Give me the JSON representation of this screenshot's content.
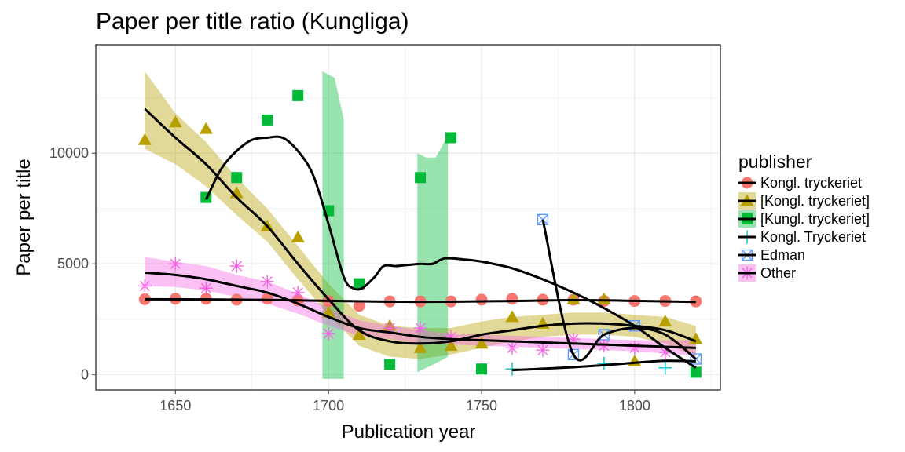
{
  "chart_data": {
    "type": "scatter",
    "title": "Paper per title ratio (Kungliga)",
    "xlabel": "Publication year",
    "ylabel": "Paper per title",
    "xlim": [
      1624,
      1828
    ],
    "ylim": [
      -700,
      14900
    ],
    "x_ticks": [
      1650,
      1700,
      1750,
      1800
    ],
    "y_ticks": [
      0,
      5000,
      10000
    ],
    "grid": true,
    "legend": {
      "title": "publisher",
      "placement": "right"
    },
    "series": [
      {
        "name": "Kongl. tryckeriet",
        "color": "#F8766D",
        "shape": "circle",
        "points": [
          [
            1640,
            3400
          ],
          [
            1650,
            3420
          ],
          [
            1660,
            3420
          ],
          [
            1670,
            3380
          ],
          [
            1680,
            3420
          ],
          [
            1690,
            3350
          ],
          [
            1700,
            3300
          ],
          [
            1710,
            3100
          ],
          [
            1720,
            3300
          ],
          [
            1730,
            3300
          ],
          [
            1740,
            3300
          ],
          [
            1750,
            3380
          ],
          [
            1760,
            3420
          ],
          [
            1770,
            3380
          ],
          [
            1780,
            3380
          ],
          [
            1790,
            3320
          ],
          [
            1800,
            3320
          ],
          [
            1810,
            3320
          ],
          [
            1820,
            3300
          ]
        ],
        "smooth": [
          [
            1640,
            3400
          ],
          [
            1660,
            3390
          ],
          [
            1680,
            3370
          ],
          [
            1700,
            3330
          ],
          [
            1720,
            3290
          ],
          [
            1740,
            3290
          ],
          [
            1760,
            3320
          ],
          [
            1780,
            3360
          ],
          [
            1800,
            3330
          ],
          [
            1820,
            3280
          ]
        ],
        "band": null
      },
      {
        "name": "[Kongl. tryckeriet]",
        "color": "#B79F00",
        "shape": "triangle",
        "points": [
          [
            1640,
            10600
          ],
          [
            1650,
            11400
          ],
          [
            1660,
            11100
          ],
          [
            1670,
            8200
          ],
          [
            1680,
            6700
          ],
          [
            1690,
            6200
          ],
          [
            1700,
            2800
          ],
          [
            1710,
            1800
          ],
          [
            1720,
            2200
          ],
          [
            1730,
            1200
          ],
          [
            1740,
            1300
          ],
          [
            1750,
            1400
          ],
          [
            1760,
            2600
          ],
          [
            1770,
            2300
          ],
          [
            1780,
            3400
          ],
          [
            1790,
            3400
          ],
          [
            1800,
            600
          ],
          [
            1810,
            2400
          ],
          [
            1820,
            1600
          ]
        ],
        "smooth": [
          [
            1640,
            12000
          ],
          [
            1650,
            10700
          ],
          [
            1660,
            9500
          ],
          [
            1670,
            8000
          ],
          [
            1680,
            6700
          ],
          [
            1690,
            5000
          ],
          [
            1700,
            3400
          ],
          [
            1710,
            2000
          ],
          [
            1720,
            1500
          ],
          [
            1730,
            1400
          ],
          [
            1740,
            1500
          ],
          [
            1750,
            1800
          ],
          [
            1760,
            2000
          ],
          [
            1770,
            2200
          ],
          [
            1780,
            2300
          ],
          [
            1790,
            2300
          ],
          [
            1800,
            2200
          ],
          [
            1810,
            2000
          ],
          [
            1820,
            1500
          ]
        ],
        "band": [
          [
            1640,
            10200,
            13700
          ],
          [
            1650,
            9500,
            11800
          ],
          [
            1660,
            8500,
            10500
          ],
          [
            1670,
            7200,
            8900
          ],
          [
            1680,
            6000,
            7500
          ],
          [
            1690,
            4300,
            5800
          ],
          [
            1700,
            2700,
            4100
          ],
          [
            1710,
            1300,
            2700
          ],
          [
            1720,
            800,
            2200
          ],
          [
            1730,
            700,
            2100
          ],
          [
            1740,
            900,
            2100
          ],
          [
            1750,
            1200,
            2400
          ],
          [
            1760,
            1500,
            2600
          ],
          [
            1770,
            1700,
            2700
          ],
          [
            1780,
            1800,
            2800
          ],
          [
            1790,
            1800,
            2800
          ],
          [
            1800,
            1700,
            2700
          ],
          [
            1810,
            1400,
            2600
          ],
          [
            1820,
            800,
            2200
          ]
        ]
      },
      {
        "name": "[Kungl. tryckeriet]",
        "color": "#00BA38",
        "shape": "square",
        "points": [
          [
            1660,
            8000
          ],
          [
            1670,
            8900
          ],
          [
            1680,
            11500
          ],
          [
            1690,
            12600
          ],
          [
            1700,
            7400
          ],
          [
            1710,
            4100
          ],
          [
            1720,
            450
          ],
          [
            1730,
            8900
          ],
          [
            1740,
            10700
          ],
          [
            1750,
            250
          ],
          [
            1820,
            100
          ]
        ],
        "smooth": [
          [
            1660,
            7900
          ],
          [
            1665,
            9300
          ],
          [
            1670,
            10100
          ],
          [
            1675,
            10600
          ],
          [
            1680,
            10700
          ],
          [
            1685,
            10700
          ],
          [
            1690,
            10100
          ],
          [
            1695,
            9000
          ],
          [
            1700,
            6800
          ],
          [
            1705,
            4400
          ],
          [
            1708,
            3900
          ],
          [
            1711,
            3900
          ],
          [
            1715,
            4400
          ],
          [
            1718,
            4900
          ],
          [
            1722,
            4900
          ],
          [
            1726,
            4950
          ],
          [
            1730,
            5000
          ],
          [
            1734,
            5000
          ],
          [
            1738,
            5250
          ],
          [
            1744,
            5200
          ],
          [
            1750,
            5100
          ],
          [
            1760,
            4800
          ],
          [
            1770,
            4300
          ],
          [
            1780,
            3700
          ],
          [
            1790,
            3000
          ],
          [
            1800,
            2200
          ],
          [
            1810,
            1200
          ],
          [
            1820,
            300
          ]
        ],
        "bands": [
          [
            [
              1698,
              -200,
              13700
            ],
            [
              1702,
              -200,
              13400
            ],
            [
              1705,
              -200,
              11500
            ]
          ],
          [
            [
              1729,
              100,
              10000
            ],
            [
              1732,
              300,
              9800
            ],
            [
              1735,
              500,
              9800
            ],
            [
              1739,
              800,
              10800
            ]
          ]
        ]
      },
      {
        "name": "Kongl. Tryckeriet",
        "color": "#00BFC4",
        "shape": "plus",
        "points": [
          [
            1760,
            250
          ],
          [
            1790,
            500
          ],
          [
            1810,
            300
          ]
        ],
        "smooth": [
          [
            1760,
            200
          ],
          [
            1770,
            260
          ],
          [
            1780,
            330
          ],
          [
            1790,
            420
          ],
          [
            1800,
            530
          ],
          [
            1810,
            620
          ],
          [
            1820,
            600
          ]
        ],
        "band": null
      },
      {
        "name": "Edman",
        "color": "#619CFF",
        "shape": "square-x",
        "points": [
          [
            1770,
            7000
          ],
          [
            1780,
            900
          ],
          [
            1790,
            1800
          ],
          [
            1800,
            2200
          ],
          [
            1820,
            700
          ]
        ],
        "smooth": [
          [
            1770,
            7000
          ],
          [
            1780,
            900
          ],
          [
            1790,
            1800
          ],
          [
            1800,
            2100
          ],
          [
            1810,
            1800
          ],
          [
            1820,
            700
          ]
        ],
        "band": null
      },
      {
        "name": "Other",
        "color": "#F564E3",
        "shape": "asterisk",
        "points": [
          [
            1640,
            4000
          ],
          [
            1650,
            5000
          ],
          [
            1660,
            3900
          ],
          [
            1670,
            4900
          ],
          [
            1680,
            4200
          ],
          [
            1690,
            3700
          ],
          [
            1700,
            1850
          ],
          [
            1720,
            2100
          ],
          [
            1730,
            2100
          ],
          [
            1740,
            1700
          ],
          [
            1760,
            1200
          ],
          [
            1770,
            1100
          ],
          [
            1780,
            1600
          ],
          [
            1790,
            1300
          ],
          [
            1800,
            1200
          ],
          [
            1810,
            1000
          ]
        ],
        "smooth": [
          [
            1640,
            4600
          ],
          [
            1650,
            4500
          ],
          [
            1660,
            4300
          ],
          [
            1670,
            4000
          ],
          [
            1680,
            3700
          ],
          [
            1690,
            3200
          ],
          [
            1700,
            2600
          ],
          [
            1710,
            2100
          ],
          [
            1720,
            1900
          ],
          [
            1730,
            1700
          ],
          [
            1740,
            1600
          ],
          [
            1750,
            1550
          ],
          [
            1760,
            1500
          ],
          [
            1770,
            1450
          ],
          [
            1780,
            1400
          ],
          [
            1790,
            1350
          ],
          [
            1800,
            1300
          ],
          [
            1810,
            1250
          ],
          [
            1820,
            1200
          ]
        ],
        "band": [
          [
            1640,
            4000,
            5300
          ],
          [
            1650,
            3950,
            5100
          ],
          [
            1660,
            3800,
            4900
          ],
          [
            1670,
            3500,
            4500
          ],
          [
            1680,
            3200,
            4200
          ],
          [
            1690,
            2750,
            3650
          ],
          [
            1700,
            2200,
            3000
          ],
          [
            1710,
            1750,
            2450
          ],
          [
            1720,
            1600,
            2200
          ],
          [
            1730,
            1400,
            2000
          ],
          [
            1740,
            1350,
            1850
          ],
          [
            1750,
            1300,
            1800
          ],
          [
            1760,
            1250,
            1750
          ],
          [
            1770,
            1200,
            1700
          ],
          [
            1780,
            1150,
            1650
          ],
          [
            1790,
            1100,
            1600
          ],
          [
            1800,
            1050,
            1550
          ],
          [
            1810,
            950,
            1550
          ],
          [
            1820,
            850,
            1550
          ]
        ]
      }
    ]
  }
}
